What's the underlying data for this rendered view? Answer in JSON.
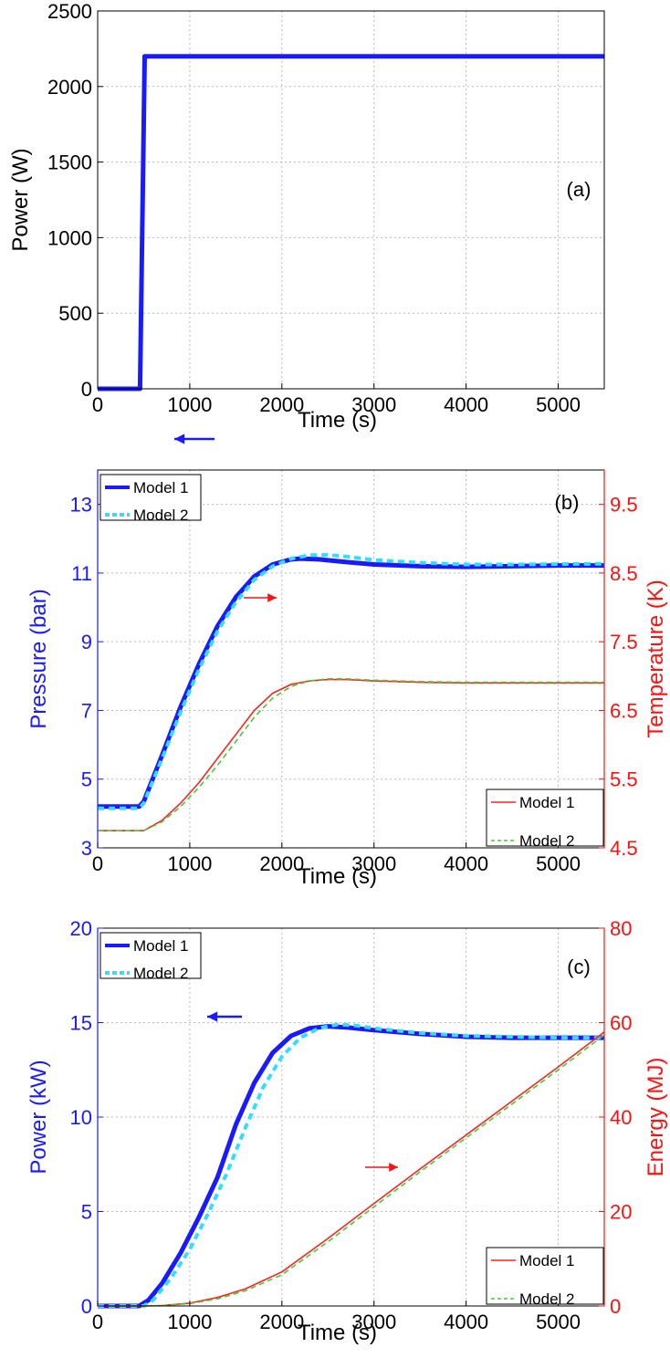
{
  "chart_data": [
    {
      "type": "line",
      "annotation": "(a)",
      "xlabel": "Time (s)",
      "ylabel": "Power (W)",
      "xlim": [
        0,
        5500
      ],
      "ylim": [
        0,
        2500
      ],
      "grid": true,
      "xticks": [
        "0",
        "1000",
        "2000",
        "3000",
        "4000",
        "5000"
      ],
      "yticks": [
        "0",
        "500",
        "1000",
        "1500",
        "2000",
        "2500"
      ],
      "series": [
        {
          "color": "#1a1aff",
          "style": "solid",
          "x": [
            0,
            460,
            510,
            5500
          ],
          "y": [
            0,
            0,
            2200,
            2200
          ]
        }
      ]
    },
    {
      "type": "line",
      "annotation": "(b)",
      "xlabel": "Time (s)",
      "ylabel": "Pressure (bar)",
      "ylabel_right": "Temperature (K)",
      "xlim": [
        0,
        5500
      ],
      "ylim": [
        3,
        14
      ],
      "ylim_right": [
        4.5,
        10
      ],
      "grid": true,
      "xticks": [
        "0",
        "1000",
        "2000",
        "3000",
        "4000",
        "5000"
      ],
      "yticks": [
        "3",
        "5",
        "7",
        "9",
        "11",
        "13"
      ],
      "yticks_right": [
        "4.5",
        "5.5",
        "6.5",
        "7.5",
        "8.5",
        "9.5"
      ],
      "legend_left": {
        "position": "top-left",
        "entries": [
          "Model 1",
          "Model 2"
        ]
      },
      "legend_right": {
        "position": "bottom-right",
        "entries": [
          "Model 1",
          "Model 2"
        ]
      },
      "arrow_left_label": "←",
      "arrow_right_label": "→",
      "series": [
        {
          "name": "Model 1",
          "axis": "left",
          "color": "#1a1aff",
          "style": "solid",
          "x": [
            0,
            450,
            500,
            700,
            900,
            1100,
            1300,
            1500,
            1700,
            1900,
            2100,
            2200,
            2400,
            2700,
            3000,
            3500,
            4000,
            4500,
            5000,
            5500
          ],
          "y": [
            4.2,
            4.2,
            4.35,
            5.7,
            7.1,
            8.35,
            9.45,
            10.3,
            10.9,
            11.25,
            11.4,
            11.42,
            11.4,
            11.32,
            11.25,
            11.2,
            11.18,
            11.2,
            11.22,
            11.22
          ]
        },
        {
          "name": "Model 2",
          "axis": "left",
          "color": "#33ddff",
          "style": "dashed",
          "x": [
            0,
            450,
            500,
            700,
            900,
            1100,
            1300,
            1500,
            1700,
            1900,
            2100,
            2300,
            2500,
            2700,
            3000,
            3500,
            4000,
            4500,
            5000,
            5500
          ],
          "y": [
            4.15,
            4.15,
            4.3,
            5.6,
            6.95,
            8.2,
            9.3,
            10.15,
            10.8,
            11.2,
            11.42,
            11.52,
            11.53,
            11.48,
            11.38,
            11.3,
            11.25,
            11.25,
            11.26,
            11.27
          ]
        },
        {
          "name": "Model 1",
          "axis": "right",
          "color": "#ff2222",
          "style": "solid",
          "x": [
            0,
            500,
            700,
            900,
            1100,
            1300,
            1500,
            1700,
            1900,
            2100,
            2300,
            2500,
            2700,
            3000,
            3500,
            4000,
            4500,
            5000,
            5500
          ],
          "y": [
            4.75,
            4.75,
            4.9,
            5.15,
            5.45,
            5.8,
            6.15,
            6.5,
            6.75,
            6.88,
            6.93,
            6.95,
            6.95,
            6.93,
            6.91,
            6.9,
            6.9,
            6.9,
            6.9
          ]
        },
        {
          "name": "Model 2",
          "axis": "right",
          "color": "#44cc33",
          "style": "dashed",
          "x": [
            0,
            500,
            700,
            900,
            1100,
            1300,
            1500,
            1700,
            1900,
            2100,
            2300,
            2500,
            2700,
            3000,
            3500,
            4000,
            4500,
            5000,
            5500
          ],
          "y": [
            4.75,
            4.75,
            4.88,
            5.1,
            5.38,
            5.7,
            6.05,
            6.4,
            6.68,
            6.85,
            6.93,
            6.96,
            6.96,
            6.94,
            6.92,
            6.91,
            6.91,
            6.91,
            6.91
          ]
        }
      ]
    },
    {
      "type": "line",
      "annotation": "(c)",
      "xlabel": "Time (s)",
      "ylabel": "Power (kW)",
      "ylabel_right": "Energy (MJ)",
      "xlim": [
        0,
        5500
      ],
      "ylim": [
        0,
        20
      ],
      "ylim_right": [
        0,
        80
      ],
      "grid": true,
      "xticks": [
        "0",
        "1000",
        "2000",
        "3000",
        "4000",
        "5000"
      ],
      "yticks": [
        "0",
        "5",
        "10",
        "15",
        "20"
      ],
      "yticks_right": [
        "0",
        "20",
        "40",
        "60",
        "80"
      ],
      "legend_left": {
        "position": "top-left",
        "entries": [
          "Model 1",
          "Model 2"
        ]
      },
      "legend_right": {
        "position": "bottom-right",
        "entries": [
          "Model 1",
          "Model 2"
        ]
      },
      "arrow_left_label": "←",
      "arrow_right_label": "→",
      "series": [
        {
          "name": "Model 1",
          "axis": "left",
          "color": "#1a1aff",
          "style": "solid",
          "x": [
            0,
            450,
            550,
            700,
            900,
            1100,
            1300,
            1500,
            1700,
            1900,
            2100,
            2300,
            2500,
            2700,
            3000,
            3500,
            4000,
            4500,
            5000,
            5500
          ],
          "y": [
            0,
            0,
            0.3,
            1.2,
            2.8,
            4.7,
            6.8,
            9.6,
            11.8,
            13.4,
            14.3,
            14.7,
            14.8,
            14.75,
            14.6,
            14.4,
            14.25,
            14.2,
            14.2,
            14.2
          ]
        },
        {
          "name": "Model 2",
          "axis": "left",
          "color": "#33ddff",
          "style": "dashed",
          "x": [
            0,
            500,
            600,
            800,
            1000,
            1200,
            1400,
            1600,
            1800,
            2000,
            2200,
            2400,
            2600,
            2800,
            3000,
            3500,
            4000,
            4500,
            5000,
            5500
          ],
          "y": [
            0,
            0,
            0.3,
            1.5,
            3.0,
            4.9,
            7.0,
            9.4,
            11.6,
            13.2,
            14.2,
            14.7,
            14.9,
            14.85,
            14.7,
            14.45,
            14.3,
            14.25,
            14.2,
            14.2
          ]
        },
        {
          "name": "Model 1",
          "axis": "right",
          "color": "#ff2222",
          "style": "solid",
          "x": [
            0,
            500,
            700,
            1000,
            1300,
            1600,
            2000,
            2500,
            3000,
            3500,
            4000,
            4500,
            5000,
            5500
          ],
          "y": [
            0,
            0,
            0.1,
            0.6,
            1.8,
            3.6,
            7.2,
            14.3,
            21.7,
            29.0,
            36.2,
            43.4,
            50.6,
            58.0
          ]
        },
        {
          "name": "Model 2",
          "axis": "right",
          "color": "#44cc33",
          "style": "dashed",
          "x": [
            0,
            500,
            700,
            1000,
            1300,
            1600,
            2000,
            2500,
            3000,
            3500,
            4000,
            4500,
            5000,
            5500
          ],
          "y": [
            0,
            0,
            0.1,
            0.5,
            1.5,
            3.2,
            6.6,
            13.6,
            21.0,
            28.4,
            35.6,
            42.8,
            50.0,
            57.4
          ]
        }
      ]
    }
  ]
}
